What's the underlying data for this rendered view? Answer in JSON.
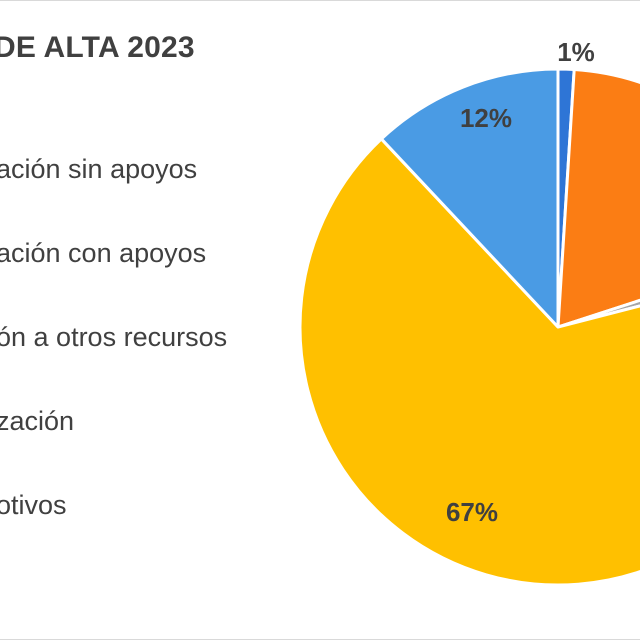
{
  "chart_data": {
    "type": "pie",
    "title": "DE ALTA 2023",
    "legend_entries": [
      "ación sin apoyos",
      "ación con apoyos",
      "ón a otros recursos",
      "zación",
      "otivos"
    ],
    "legend_position": "left",
    "slices": [
      {
        "label": "1%",
        "value": 1,
        "color": "#2e75d6"
      },
      {
        "label": "",
        "value": 19,
        "color": "#fb7d14"
      },
      {
        "label": "",
        "value": 1,
        "color": "#a5a5a5"
      },
      {
        "label": "67%",
        "value": 67,
        "color": "#ffc000"
      },
      {
        "label": "12%",
        "value": 12,
        "color": "#4a9be4"
      }
    ]
  }
}
